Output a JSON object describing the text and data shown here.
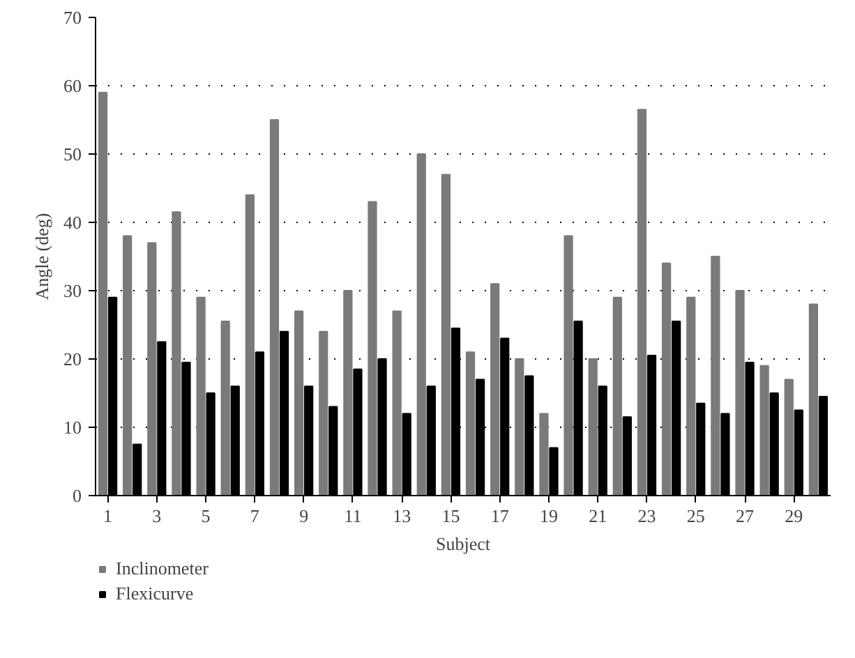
{
  "chart_data": {
    "type": "bar",
    "xlabel": "Subject",
    "ylabel": "Angle (deg)",
    "x": [
      1,
      2,
      3,
      4,
      5,
      6,
      7,
      8,
      9,
      10,
      11,
      12,
      13,
      14,
      15,
      16,
      17,
      18,
      19,
      20,
      21,
      22,
      23,
      24,
      25,
      26,
      27,
      28,
      29,
      30
    ],
    "xlim": [
      0.5,
      30.5
    ],
    "xticks": [
      1,
      3,
      5,
      7,
      9,
      11,
      13,
      15,
      17,
      19,
      21,
      23,
      25,
      27,
      29
    ],
    "ylim": [
      0,
      70
    ],
    "yticks": [
      0,
      10,
      20,
      30,
      40,
      50,
      60,
      70
    ],
    "grid": "y",
    "legend": "bottom left",
    "series": [
      {
        "name": "Inclinometer",
        "color": "#7a7a7a",
        "values": [
          59,
          38,
          37,
          41.5,
          29,
          25.5,
          44,
          55,
          27,
          24,
          30,
          43,
          27,
          50,
          47,
          21,
          31,
          20,
          12,
          38,
          20,
          29,
          56.5,
          34,
          29,
          35,
          30,
          19,
          17,
          28
        ]
      },
      {
        "name": "Flexicurve",
        "color": "#000000",
        "values": [
          29,
          7.5,
          22.5,
          19.5,
          15,
          16,
          21,
          24,
          16,
          13,
          18.5,
          20,
          12,
          16,
          24.5,
          17,
          23,
          17.5,
          7,
          25.5,
          16,
          11.5,
          20.5,
          25.5,
          13.5,
          12,
          19.5,
          15,
          12.5,
          14.5
        ]
      }
    ]
  }
}
